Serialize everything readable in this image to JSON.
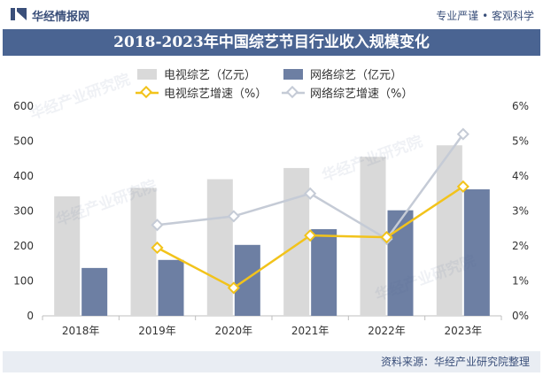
{
  "header": {
    "brand": "华经情报网",
    "slogan": "专业严谨 • 客观科学"
  },
  "title": "2018-2023年中国综艺节目行业收入规模变化",
  "source": "资料来源：华经产业研究院整理",
  "watermark": "华经产业研究院",
  "colors": {
    "tv_bar": "#d9d9d9",
    "net_bar": "#6d7fa3",
    "tv_line": "#f2c31b",
    "net_line": "#c5cbd6",
    "header": "#4a6492"
  },
  "chart_data": {
    "type": "bar",
    "categories": [
      "2018年",
      "2019年",
      "2020年",
      "2021年",
      "2022年",
      "2023年"
    ],
    "series": [
      {
        "name": "电视综艺（亿元）",
        "kind": "bar",
        "axis": "left",
        "values": [
          342,
          366,
          391,
          423,
          455,
          488
        ]
      },
      {
        "name": "网络综艺（亿元）",
        "kind": "bar",
        "axis": "left",
        "values": [
          137,
          160,
          203,
          248,
          302,
          362
        ]
      },
      {
        "name": "电视综艺增速（%）",
        "kind": "line",
        "axis": "right",
        "values": [
          null,
          1.95,
          0.8,
          2.3,
          2.25,
          3.7
        ]
      },
      {
        "name": "网络综艺增速（%）",
        "kind": "line",
        "axis": "right",
        "values": [
          null,
          2.6,
          2.85,
          3.5,
          2.2,
          5.2
        ]
      }
    ],
    "y_left": {
      "ticks": [
        "0",
        "100",
        "200",
        "300",
        "400",
        "500",
        "600"
      ],
      "min": 0,
      "max": 600
    },
    "y_right": {
      "ticks": [
        "0%",
        "1%",
        "2%",
        "3%",
        "4%",
        "5%",
        "6%"
      ],
      "min": 0,
      "max": 6
    },
    "legend_position": "top",
    "grid": false
  }
}
